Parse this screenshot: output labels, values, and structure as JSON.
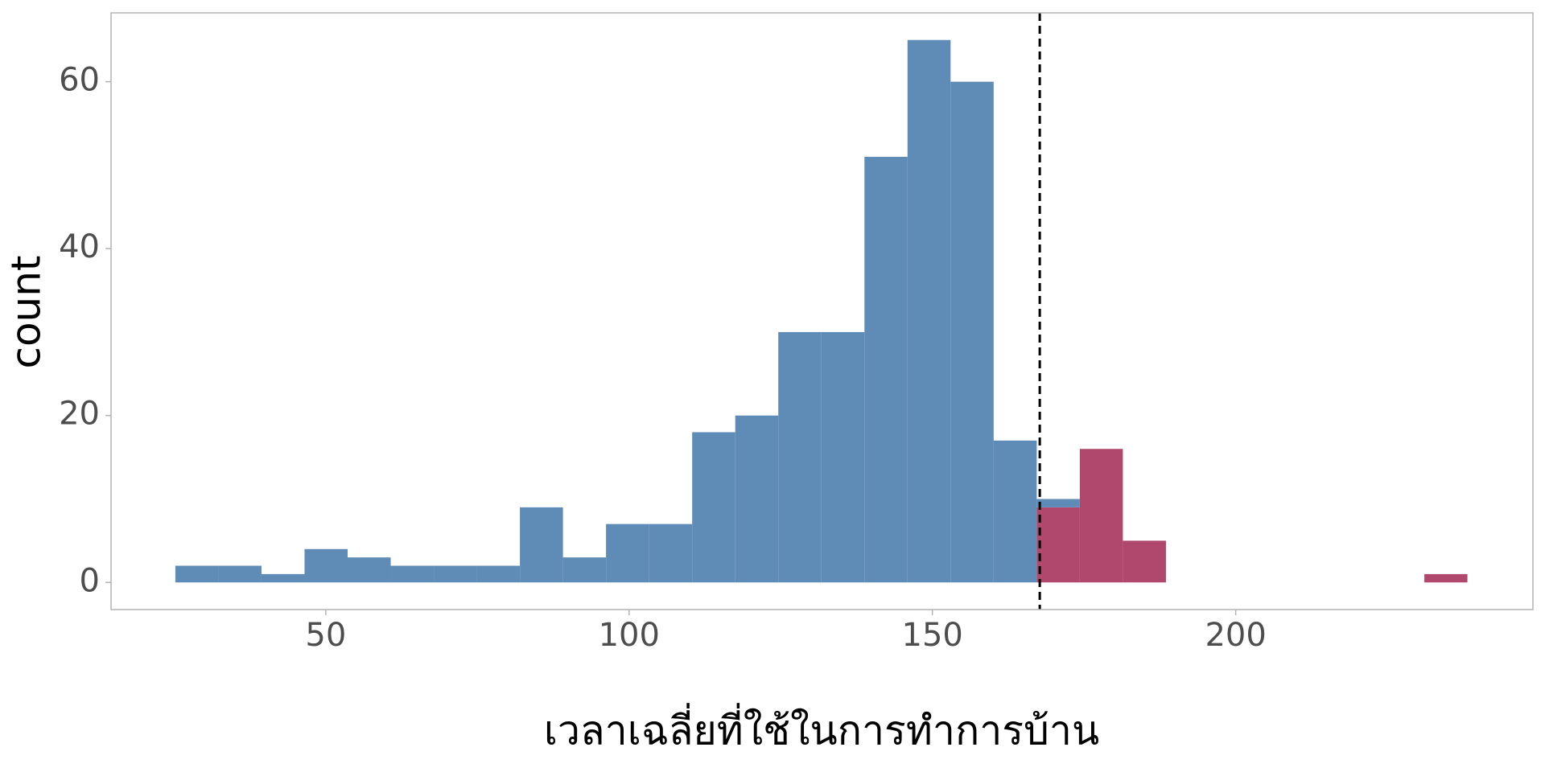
{
  "chart_data": {
    "type": "histogram",
    "xlabel": "เวลาเฉลี่ยที่ใช้ในการทำการบ้าน",
    "ylabel": "count",
    "bins": [
      25.2,
      32.3,
      39.4,
      46.5,
      53.6,
      60.7,
      67.8,
      74.9,
      82.0,
      89.1,
      96.2,
      103.3,
      110.4,
      117.5,
      124.6,
      131.7,
      138.8,
      145.9,
      153.0,
      160.1,
      167.2,
      174.3,
      181.4,
      188.5,
      195.6,
      202.7,
      209.8,
      216.9,
      224.0,
      231.1,
      238.2
    ],
    "series": [
      {
        "color": "#5f8bb7",
        "values": [
          2,
          2,
          1,
          4,
          3,
          2,
          2,
          2,
          9,
          3,
          7,
          7,
          18,
          20,
          30,
          30,
          51,
          65,
          60,
          17,
          1,
          0,
          0,
          0,
          0,
          0,
          0,
          0,
          0,
          0
        ]
      },
      {
        "color": "#b0486e",
        "values": [
          0,
          0,
          0,
          0,
          0,
          0,
          0,
          0,
          0,
          0,
          0,
          0,
          0,
          0,
          0,
          0,
          0,
          0,
          0,
          0,
          9,
          16,
          5,
          0,
          0,
          0,
          0,
          0,
          0,
          1
        ]
      }
    ],
    "stacked": true,
    "reference_line": 167.7,
    "xlim": [
      14.6,
      249.0
    ],
    "xticks": [
      50,
      100,
      150,
      200
    ],
    "ylim": [
      -3.25,
      68.25
    ],
    "yticks": [
      0,
      20,
      40,
      60
    ],
    "grid": false
  }
}
